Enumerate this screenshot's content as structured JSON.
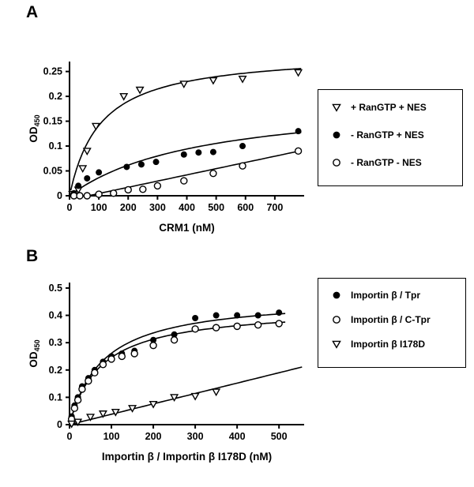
{
  "chart_data": [
    {
      "panel_label": "A",
      "type": "scatter",
      "title": "",
      "xlabel": "CRM1 (nM)",
      "ylabel": "OD",
      "ylabel_sub": "450",
      "xlim": [
        0,
        800
      ],
      "ylim": [
        0,
        0.27
      ],
      "xticks": [
        0,
        100,
        200,
        300,
        400,
        500,
        600,
        700
      ],
      "xtick_labels": [
        "0",
        "100",
        "200",
        "300",
        "400",
        "500",
        "600",
        "700"
      ],
      "yticks": [
        0,
        0.05,
        0.1,
        0.15,
        0.2,
        0.25
      ],
      "ytick_labels": [
        "0",
        "0.05",
        "0.1",
        "0.15",
        "0.2",
        "0.25"
      ],
      "grid": false,
      "legend_position": "right-outside-box",
      "series": [
        {
          "name": "+ RanGTP + NES",
          "marker": "triangle-open",
          "x": [
            10,
            30,
            45,
            60,
            90,
            185,
            240,
            390,
            490,
            590,
            780
          ],
          "y": [
            0.003,
            0.012,
            0.055,
            0.09,
            0.14,
            0.2,
            0.213,
            0.225,
            0.232,
            0.235,
            0.248
          ],
          "fit": {
            "type": "saturation",
            "vmax": 0.29,
            "km": 105,
            "range": [
              4,
              790
            ]
          }
        },
        {
          "name": "- RanGTP + NES",
          "marker": "circle-filled",
          "x": [
            15,
            30,
            60,
            100,
            195,
            245,
            295,
            390,
            440,
            490,
            590,
            780
          ],
          "y": [
            0.005,
            0.02,
            0.035,
            0.047,
            0.058,
            0.063,
            0.068,
            0.083,
            0.087,
            0.088,
            0.1,
            0.13
          ],
          "fit": {
            "type": "saturation",
            "vmax": 0.2,
            "km": 450,
            "range": [
              4,
              790
            ]
          }
        },
        {
          "name": "- RanGTP - NES",
          "marker": "circle-open",
          "x": [
            15,
            35,
            60,
            100,
            150,
            200,
            250,
            300,
            390,
            490,
            590,
            780
          ],
          "y": [
            0,
            0,
            0,
            0.003,
            0.005,
            0.012,
            0.013,
            0.02,
            0.03,
            0.045,
            0.06,
            0.09
          ],
          "fit": {
            "type": "linear",
            "intercept": -0.008,
            "slope": 0.000125,
            "range": [
              64,
              790
            ]
          }
        }
      ]
    },
    {
      "panel_label": "B",
      "type": "scatter",
      "title": "",
      "xlabel": "Importin β / Importin β I178D (nM)",
      "ylabel": "OD",
      "ylabel_sub": "450",
      "xlim": [
        0,
        560
      ],
      "ylim": [
        0,
        0.52
      ],
      "xticks": [
        0,
        100,
        200,
        300,
        400,
        500
      ],
      "xtick_labels": [
        "0",
        "100",
        "200",
        "300",
        "400",
        "500"
      ],
      "yticks": [
        0,
        0.1,
        0.2,
        0.3,
        0.4,
        0.5
      ],
      "ytick_labels": [
        "0",
        "0.1",
        "0.2",
        "0.3",
        "0.4",
        "0.5"
      ],
      "grid": false,
      "legend_position": "right-outside-box",
      "series": [
        {
          "name": "Importin β / Tpr",
          "marker": "circle-filled",
          "x": [
            5,
            12,
            20,
            30,
            45,
            60,
            80,
            100,
            125,
            155,
            200,
            250,
            300,
            350,
            400,
            450,
            500
          ],
          "y": [
            0.03,
            0.07,
            0.1,
            0.14,
            0.17,
            0.2,
            0.23,
            0.25,
            0.26,
            0.27,
            0.31,
            0.33,
            0.39,
            0.4,
            0.4,
            0.4,
            0.41
          ],
          "fit": {
            "type": "saturation",
            "vmax": 0.47,
            "km": 80,
            "range": [
              2,
              515
            ]
          }
        },
        {
          "name": "Importin β / C-Tpr",
          "marker": "circle-open",
          "x": [
            5,
            12,
            20,
            30,
            45,
            60,
            80,
            100,
            125,
            155,
            200,
            250,
            300,
            350,
            400,
            450,
            500
          ],
          "y": [
            0.02,
            0.06,
            0.09,
            0.13,
            0.16,
            0.19,
            0.22,
            0.24,
            0.25,
            0.26,
            0.29,
            0.31,
            0.35,
            0.355,
            0.36,
            0.365,
            0.37
          ],
          "fit": {
            "type": "saturation",
            "vmax": 0.43,
            "km": 75,
            "range": [
              2,
              515
            ]
          }
        },
        {
          "name": "Importin β I178D",
          "marker": "triangle-open",
          "x": [
            5,
            20,
            50,
            80,
            110,
            150,
            200,
            250,
            300,
            350
          ],
          "y": [
            0.003,
            0.01,
            0.028,
            0.04,
            0.046,
            0.06,
            0.075,
            0.1,
            0.104,
            0.12
          ],
          "fit": {
            "type": "linear",
            "intercept": 0,
            "slope": 0.00038,
            "range": [
              0,
              555
            ]
          }
        }
      ]
    }
  ]
}
